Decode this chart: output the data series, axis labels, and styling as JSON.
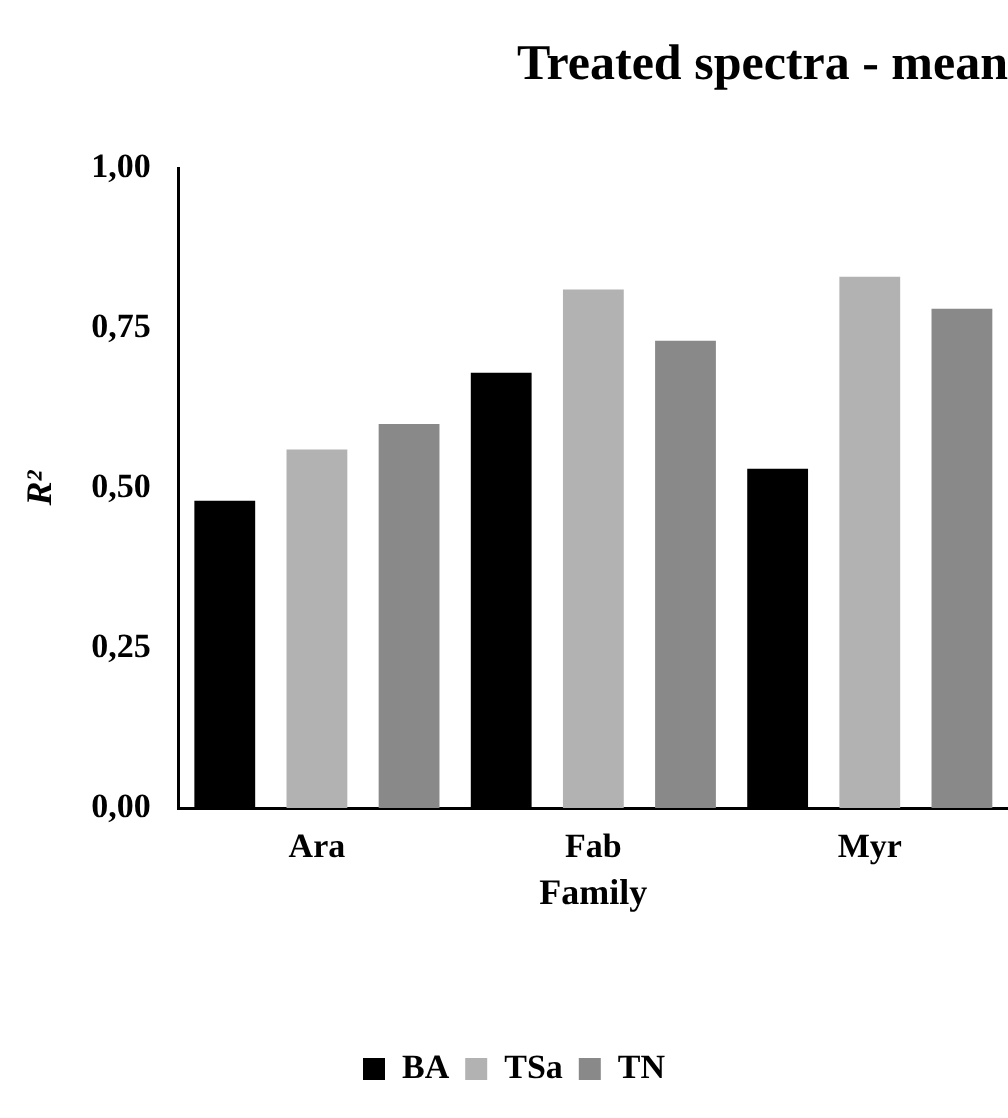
{
  "chart_data": {
    "type": "bar",
    "title": "Treated spectra - mean",
    "xlabel": "Family",
    "ylabel": "R²",
    "categories": [
      "Ara",
      "Fab",
      "Myr"
    ],
    "series": [
      {
        "name": "BA",
        "color": "#000000",
        "values": [
          0.48,
          0.68,
          0.53
        ]
      },
      {
        "name": "TSa",
        "color": "#b2b2b2",
        "values": [
          0.56,
          0.81,
          0.83
        ]
      },
      {
        "name": "TN",
        "color": "#898989",
        "values": [
          0.6,
          0.73,
          0.78
        ]
      }
    ],
    "ylim": [
      0,
      1
    ],
    "yticks": [
      {
        "value": 0,
        "label": "0,00"
      },
      {
        "value": 0.25,
        "label": "0,25"
      },
      {
        "value": 0.5,
        "label": "0,50"
      },
      {
        "value": 0.75,
        "label": "0,75"
      },
      {
        "value": 1,
        "label": "1,00"
      }
    ],
    "grid": false,
    "legend": "bottom"
  }
}
